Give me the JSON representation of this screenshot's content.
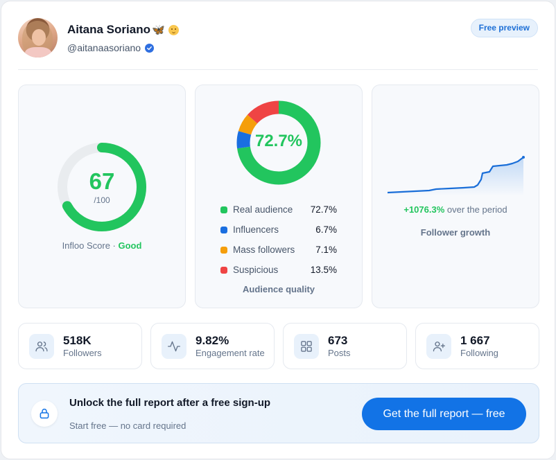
{
  "profile": {
    "name": "Aitana Soriano",
    "name_emoji": "🦋",
    "handle": "@aitanaasoriano",
    "verified": true,
    "badge": "Free preview"
  },
  "score": {
    "value": "67",
    "max": "/100",
    "progress": 0.67,
    "label_prefix": "Infloo Score · ",
    "label_status": "Good",
    "color": "#22c55e"
  },
  "audience": {
    "center": "72.7%",
    "title": "Audience quality",
    "items": [
      {
        "label": "Real audience",
        "value": "72.7%",
        "pct": 72.7,
        "color": "#22c55e"
      },
      {
        "label": "Influencers",
        "value": "6.7%",
        "pct": 6.7,
        "color": "#1a6ee0"
      },
      {
        "label": "Mass followers",
        "value": "7.1%",
        "pct": 7.1,
        "color": "#f59e0b"
      },
      {
        "label": "Suspicious",
        "value": "13.5%",
        "pct": 13.5,
        "color": "#ef4444"
      }
    ]
  },
  "growth": {
    "percent": "+1076.3%",
    "suffix": " over the period",
    "title": "Follower growth",
    "line_color": "#1a6ed8"
  },
  "stats": [
    {
      "value": "518K",
      "label": "Followers",
      "icon": "users-icon"
    },
    {
      "value": "9.82%",
      "label": "Engagement rate",
      "icon": "activity-icon"
    },
    {
      "value": "673",
      "label": "Posts",
      "icon": "grid-icon"
    },
    {
      "value": "1 667",
      "label": "Following",
      "icon": "user-plus-icon"
    }
  ],
  "cta": {
    "title": "Unlock the full report after a free sign-up",
    "subtitle": "Start free — no card required",
    "button": "Get the full report — free",
    "icon": "lock-icon"
  },
  "colors": {
    "accent": "#1273e6",
    "good": "#22c55e"
  }
}
